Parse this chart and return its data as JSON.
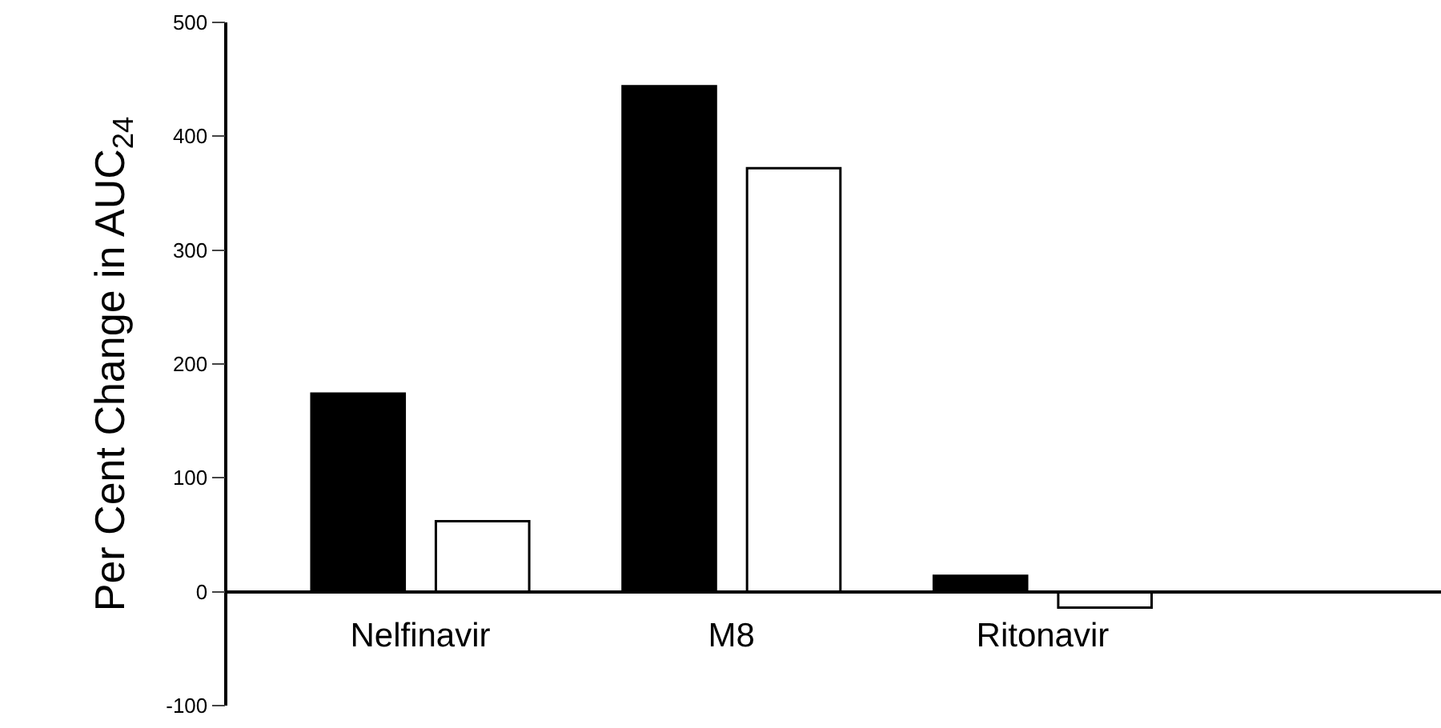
{
  "chart_data": {
    "type": "bar",
    "ylabel": "Per Cent Change in AUC$_{24}$",
    "categories": [
      "Nelfinavir",
      "M8",
      "Ritonavir"
    ],
    "series": [
      {
        "color": "#000000",
        "values": [
          174,
          444,
          14
        ]
      },
      {
        "color": "#ffffff",
        "values": [
          62,
          372,
          -14
        ]
      }
    ],
    "ylim": [
      -100,
      500
    ],
    "yticks": [
      -100,
      0,
      100,
      200,
      300,
      400,
      500
    ]
  }
}
